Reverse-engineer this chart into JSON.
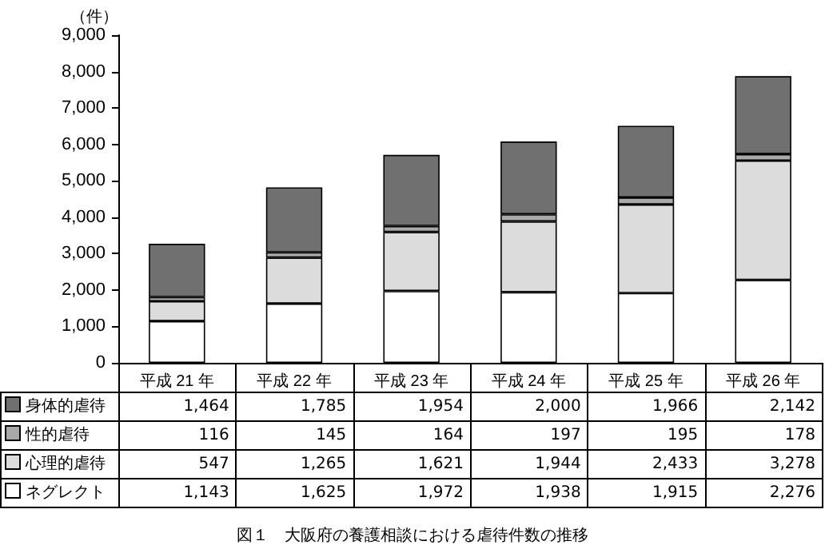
{
  "chart_data": {
    "type": "bar",
    "stacked": true,
    "title": "図１　大阪府の養護相談における虐待件数の推移",
    "ylabel": "（件）",
    "categories": [
      "平成 21 年",
      "平成 22 年",
      "平成 23 年",
      "平成 24 年",
      "平成 25 年",
      "平成 26 年"
    ],
    "series": [
      {
        "name": "ネグレクト",
        "color": "#ffffff",
        "values": [
          1143,
          1625,
          1972,
          1938,
          1915,
          2276
        ],
        "value_labels": [
          "1,143",
          "1,625",
          "1,972",
          "1,938",
          "1,915",
          "2,276"
        ]
      },
      {
        "name": "心理的虐待",
        "color": "#dcdcdc",
        "values": [
          547,
          1265,
          1621,
          1944,
          2433,
          3278
        ],
        "value_labels": [
          "547",
          "1,265",
          "1,621",
          "1,944",
          "2,433",
          "3,278"
        ]
      },
      {
        "name": "性的虐待",
        "color": "#a9a9a9",
        "values": [
          116,
          145,
          164,
          197,
          195,
          178
        ],
        "value_labels": [
          "116",
          "145",
          "164",
          "197",
          "195",
          "178"
        ]
      },
      {
        "name": "身体的虐待",
        "color": "#707070",
        "values": [
          1464,
          1785,
          1954,
          2000,
          1966,
          2142
        ],
        "value_labels": [
          "1,464",
          "1,785",
          "1,954",
          "2,000",
          "1,966",
          "2,142"
        ]
      }
    ],
    "ylim": [
      0,
      9000
    ],
    "yticks": [
      0,
      {
        "value": 1000,
        "label": "1,000"
      },
      {
        "value": 2000,
        "label": "2,000"
      },
      {
        "value": 3000,
        "label": "3,000"
      },
      {
        "value": 4000,
        "label": "4,000"
      },
      {
        "value": 5000,
        "label": "5,000"
      },
      {
        "value": 6000,
        "label": "6,000"
      },
      {
        "value": 7000,
        "label": "7,000"
      },
      {
        "value": 8000,
        "label": "8,000"
      },
      {
        "value": 9000,
        "label": "9,000"
      }
    ],
    "grid": false,
    "legend": "bottom"
  }
}
